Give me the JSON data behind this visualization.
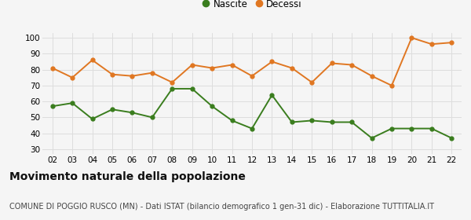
{
  "years": [
    "02",
    "03",
    "04",
    "05",
    "06",
    "07",
    "08",
    "09",
    "10",
    "11",
    "12",
    "13",
    "14",
    "15",
    "16",
    "17",
    "18",
    "19",
    "20",
    "21",
    "22"
  ],
  "nascite": [
    57,
    59,
    49,
    55,
    53,
    50,
    68,
    68,
    57,
    48,
    43,
    64,
    47,
    48,
    47,
    47,
    37,
    43,
    43,
    43,
    37
  ],
  "decessi": [
    81,
    75,
    86,
    77,
    76,
    78,
    72,
    83,
    81,
    83,
    76,
    85,
    81,
    72,
    84,
    83,
    76,
    70,
    100,
    96,
    97
  ],
  "nascite_color": "#3a7d1e",
  "decessi_color": "#e07722",
  "background_color": "#f5f5f5",
  "grid_color": "#dddddd",
  "ylim": [
    27,
    103
  ],
  "yticks": [
    30,
    40,
    50,
    60,
    70,
    80,
    90,
    100
  ],
  "title": "Movimento naturale della popolazione",
  "subtitle": "COMUNE DI POGGIO RUSCO (MN) - Dati ISTAT (bilancio demografico 1 gen-31 dic) - Elaborazione TUTTITALIA.IT",
  "legend_nascite": "Nascite",
  "legend_decessi": "Decessi",
  "title_fontsize": 10,
  "subtitle_fontsize": 7,
  "tick_fontsize": 7.5,
  "legend_fontsize": 8.5,
  "marker_size": 3.5,
  "line_width": 1.4
}
